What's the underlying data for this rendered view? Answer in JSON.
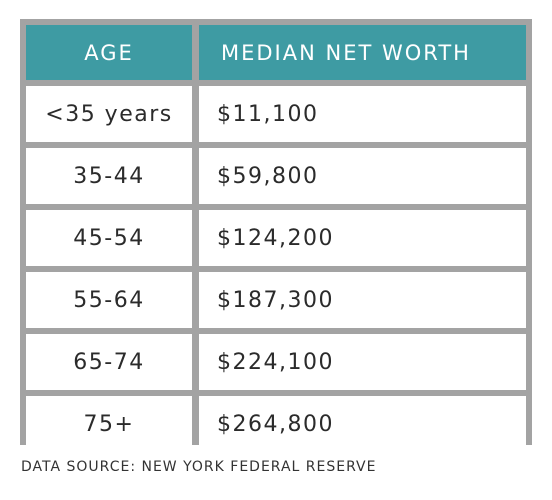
{
  "chart_data": {
    "type": "table",
    "columns": [
      "AGE",
      "MEDIAN NET WORTH"
    ],
    "rows": [
      [
        "<35 years",
        "$11,100"
      ],
      [
        "35-44",
        "$59,800"
      ],
      [
        "45-54",
        "$124,200"
      ],
      [
        "55-64",
        "$187,300"
      ],
      [
        "65-74",
        "$224,100"
      ],
      [
        "75+",
        "$264,800"
      ]
    ],
    "source": "DATA SOURCE: NEW YORK FEDERAL RESERVE",
    "header_color": "#3e9ba3",
    "border_color": "#a3a3a3"
  }
}
